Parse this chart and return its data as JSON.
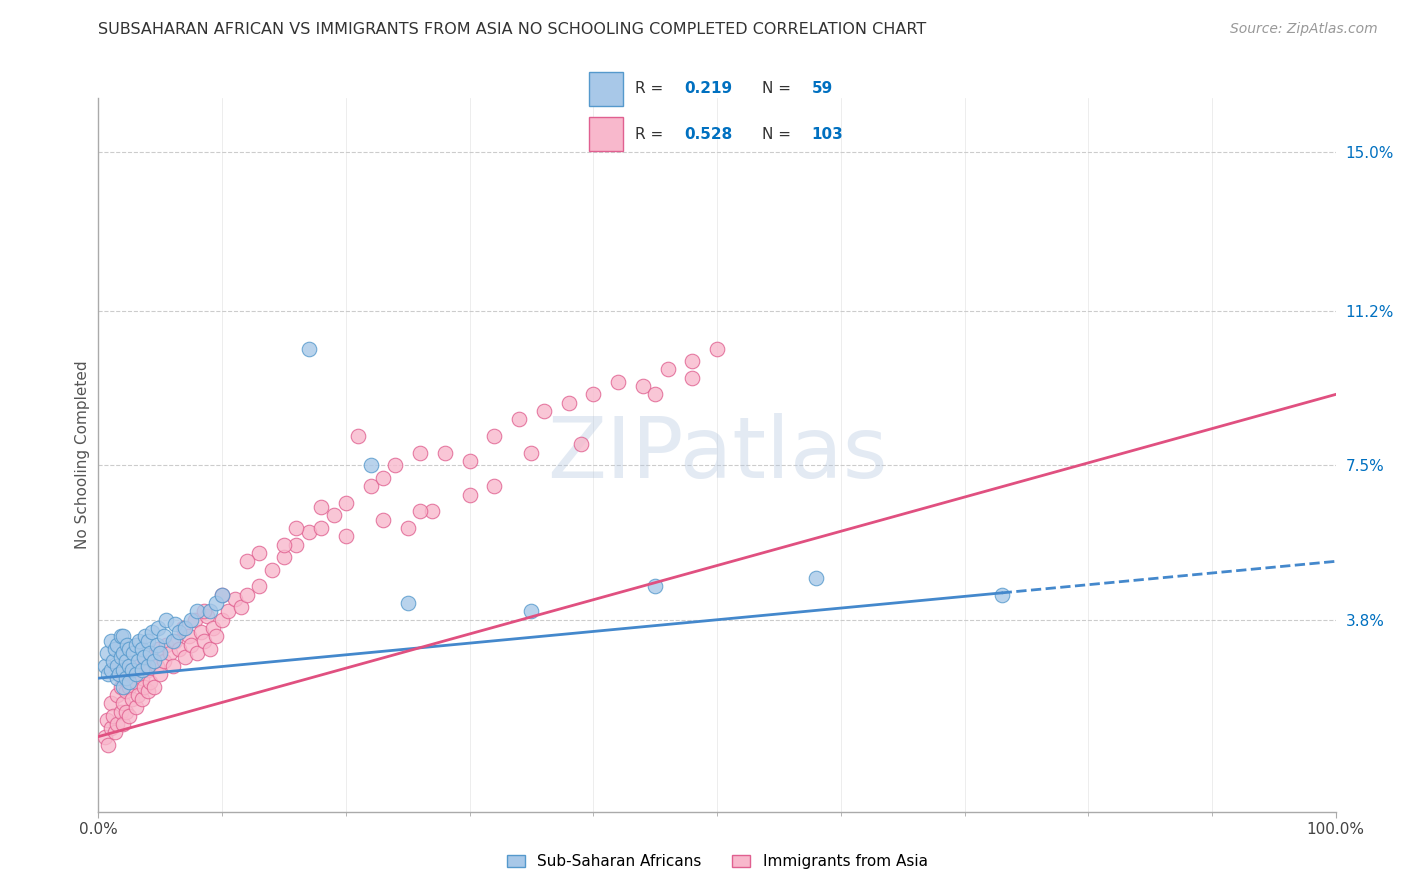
{
  "title": "SUBSAHARAN AFRICAN VS IMMIGRANTS FROM ASIA NO SCHOOLING COMPLETED CORRELATION CHART",
  "source": "Source: ZipAtlas.com",
  "ylabel": "No Schooling Completed",
  "yticks_labels": [
    "15.0%",
    "11.2%",
    "7.5%",
    "3.8%"
  ],
  "ytick_vals": [
    0.15,
    0.112,
    0.075,
    0.038
  ],
  "xlim": [
    0,
    1
  ],
  "ylim": [
    -0.008,
    0.163
  ],
  "color_blue_fill": "#a8c8e8",
  "color_blue_edge": "#5599cc",
  "color_blue_line": "#4488cc",
  "color_pink_fill": "#f8b8cc",
  "color_pink_edge": "#e06090",
  "color_pink_line": "#e05080",
  "color_grid": "#cccccc",
  "blue_line_solid_end": 0.73,
  "blue_line_intercept": 0.024,
  "blue_line_slope": 0.028,
  "pink_line_intercept": 0.01,
  "pink_line_slope": 0.082,
  "blue_x": [
    0.005,
    0.007,
    0.008,
    0.01,
    0.01,
    0.012,
    0.013,
    0.015,
    0.015,
    0.015,
    0.017,
    0.018,
    0.018,
    0.02,
    0.02,
    0.02,
    0.02,
    0.022,
    0.022,
    0.023,
    0.025,
    0.025,
    0.025,
    0.027,
    0.028,
    0.03,
    0.03,
    0.032,
    0.033,
    0.035,
    0.035,
    0.037,
    0.038,
    0.04,
    0.04,
    0.042,
    0.043,
    0.045,
    0.047,
    0.048,
    0.05,
    0.053,
    0.055,
    0.06,
    0.062,
    0.065,
    0.07,
    0.075,
    0.08,
    0.09,
    0.095,
    0.1,
    0.17,
    0.22,
    0.25,
    0.35,
    0.45,
    0.58,
    0.73
  ],
  "blue_y": [
    0.027,
    0.03,
    0.025,
    0.026,
    0.033,
    0.028,
    0.031,
    0.024,
    0.027,
    0.032,
    0.025,
    0.029,
    0.034,
    0.022,
    0.026,
    0.03,
    0.034,
    0.024,
    0.028,
    0.032,
    0.023,
    0.027,
    0.031,
    0.026,
    0.03,
    0.025,
    0.032,
    0.028,
    0.033,
    0.026,
    0.031,
    0.029,
    0.034,
    0.027,
    0.033,
    0.03,
    0.035,
    0.028,
    0.032,
    0.036,
    0.03,
    0.034,
    0.038,
    0.033,
    0.037,
    0.035,
    0.036,
    0.038,
    0.04,
    0.04,
    0.042,
    0.044,
    0.103,
    0.075,
    0.042,
    0.04,
    0.046,
    0.048,
    0.044
  ],
  "pink_x": [
    0.005,
    0.007,
    0.008,
    0.01,
    0.01,
    0.012,
    0.013,
    0.015,
    0.015,
    0.018,
    0.018,
    0.02,
    0.02,
    0.02,
    0.022,
    0.022,
    0.023,
    0.025,
    0.025,
    0.027,
    0.028,
    0.03,
    0.03,
    0.032,
    0.033,
    0.035,
    0.035,
    0.037,
    0.038,
    0.04,
    0.04,
    0.042,
    0.043,
    0.045,
    0.047,
    0.048,
    0.05,
    0.053,
    0.055,
    0.058,
    0.06,
    0.062,
    0.065,
    0.068,
    0.07,
    0.073,
    0.075,
    0.078,
    0.08,
    0.083,
    0.085,
    0.088,
    0.09,
    0.093,
    0.095,
    0.1,
    0.105,
    0.11,
    0.115,
    0.12,
    0.13,
    0.14,
    0.15,
    0.16,
    0.17,
    0.18,
    0.19,
    0.2,
    0.21,
    0.22,
    0.23,
    0.24,
    0.26,
    0.28,
    0.3,
    0.32,
    0.34,
    0.36,
    0.38,
    0.4,
    0.42,
    0.44,
    0.46,
    0.48,
    0.5,
    0.27,
    0.32,
    0.3,
    0.45,
    0.48,
    0.39,
    0.35,
    0.25,
    0.26,
    0.23,
    0.2,
    0.15,
    0.18,
    0.16,
    0.13,
    0.12,
    0.1,
    0.085
  ],
  "pink_y": [
    0.01,
    0.014,
    0.008,
    0.012,
    0.018,
    0.015,
    0.011,
    0.013,
    0.02,
    0.016,
    0.022,
    0.013,
    0.018,
    0.024,
    0.016,
    0.021,
    0.026,
    0.015,
    0.022,
    0.019,
    0.025,
    0.017,
    0.023,
    0.02,
    0.027,
    0.019,
    0.024,
    0.022,
    0.028,
    0.021,
    0.026,
    0.023,
    0.029,
    0.022,
    0.027,
    0.031,
    0.025,
    0.028,
    0.032,
    0.03,
    0.027,
    0.033,
    0.031,
    0.036,
    0.029,
    0.034,
    0.032,
    0.038,
    0.03,
    0.035,
    0.033,
    0.039,
    0.031,
    0.036,
    0.034,
    0.038,
    0.04,
    0.043,
    0.041,
    0.044,
    0.046,
    0.05,
    0.053,
    0.056,
    0.059,
    0.06,
    0.063,
    0.066,
    0.082,
    0.07,
    0.072,
    0.075,
    0.078,
    0.078,
    0.076,
    0.082,
    0.086,
    0.088,
    0.09,
    0.092,
    0.095,
    0.094,
    0.098,
    0.1,
    0.103,
    0.064,
    0.07,
    0.068,
    0.092,
    0.096,
    0.08,
    0.078,
    0.06,
    0.064,
    0.062,
    0.058,
    0.056,
    0.065,
    0.06,
    0.054,
    0.052,
    0.044,
    0.04
  ]
}
